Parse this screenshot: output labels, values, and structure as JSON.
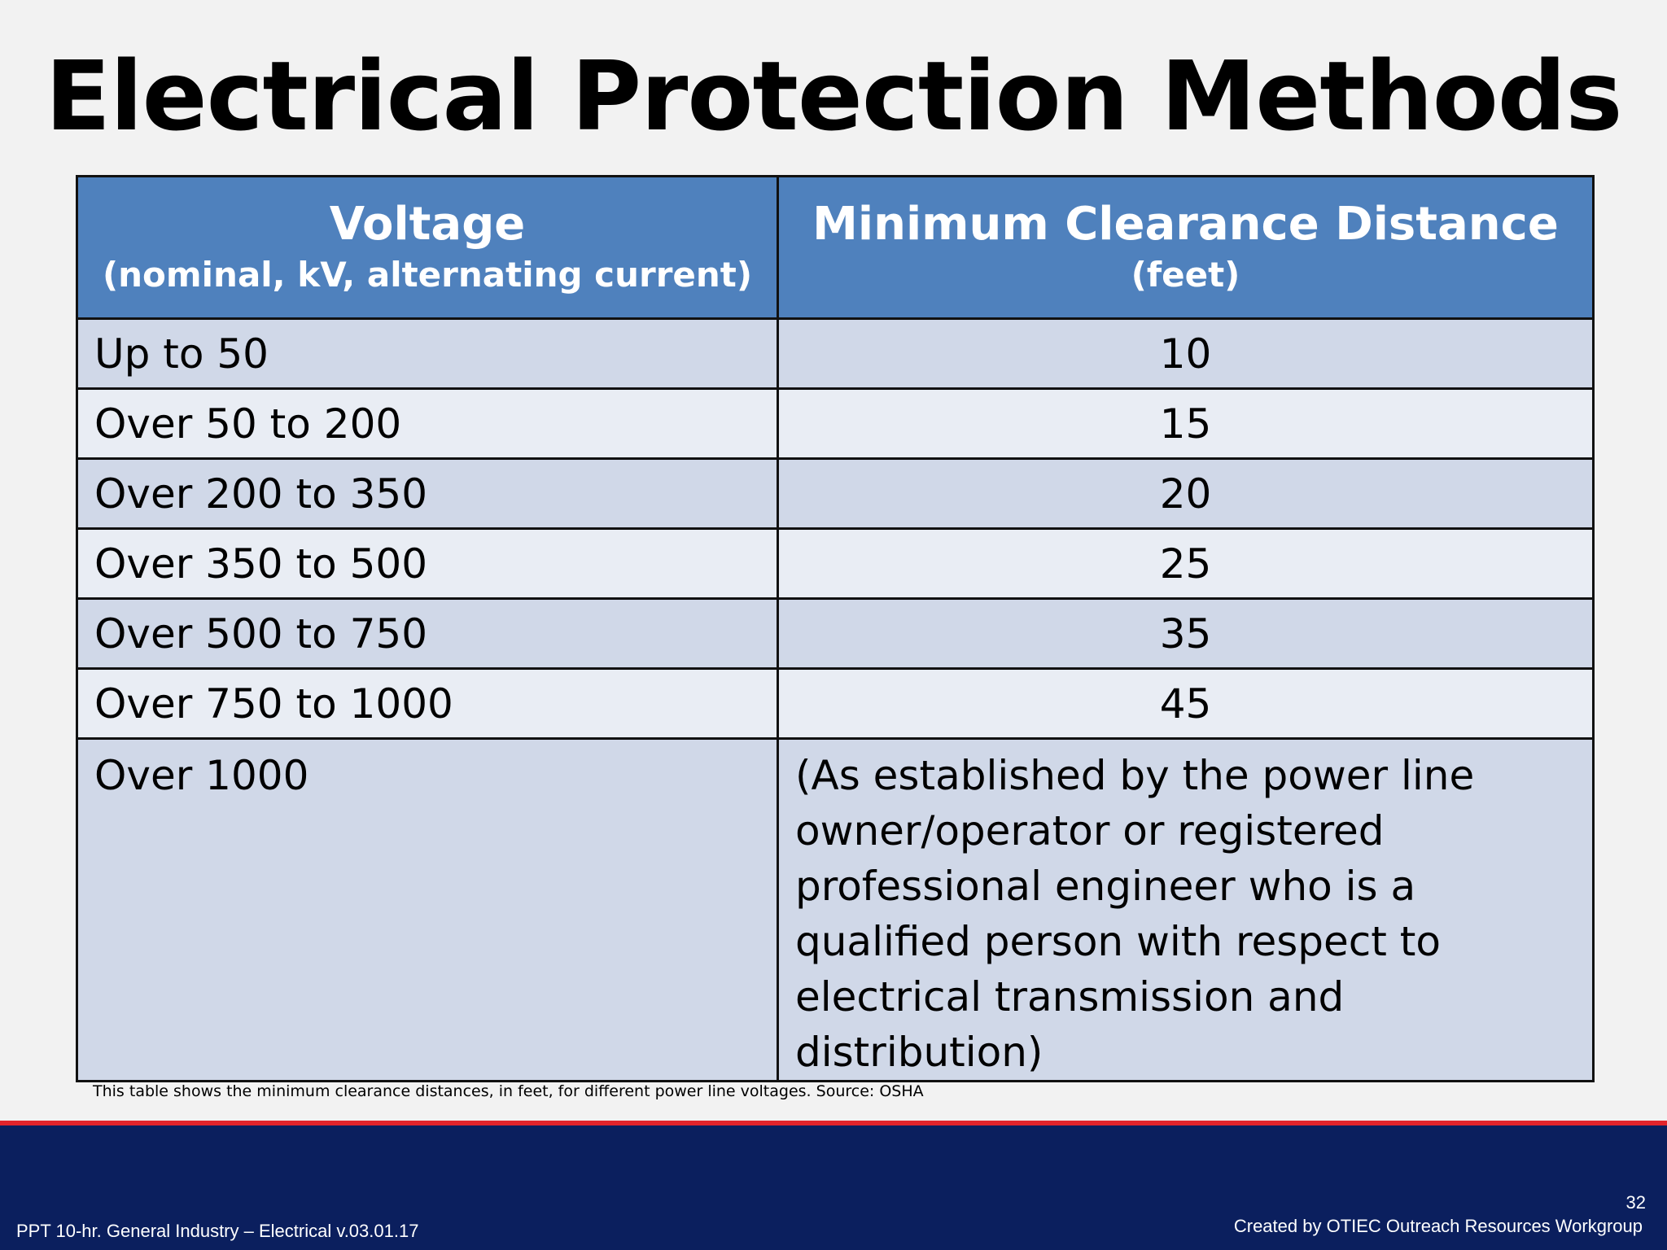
{
  "slide": {
    "title": "Electrical Protection Methods",
    "note": "This table shows the minimum clearance distances, in feet, for different power line voltages. Source: OSHA"
  },
  "table": {
    "headers": [
      {
        "main": "Voltage",
        "sub": "(nominal, kV, alternating current)"
      },
      {
        "main": "Minimum Clearance Distance",
        "sub": "(feet)"
      }
    ],
    "rows": [
      {
        "voltage": "Up to 50",
        "distance": "10"
      },
      {
        "voltage": "Over 50 to 200",
        "distance": "15"
      },
      {
        "voltage": "Over 200 to 350",
        "distance": "20"
      },
      {
        "voltage": "Over 350 to 500",
        "distance": "25"
      },
      {
        "voltage": "Over 500 to 750",
        "distance": "35"
      },
      {
        "voltage": "Over 750 to 1000",
        "distance": "45"
      },
      {
        "voltage": "Over 1000",
        "distance": "(As established by the power line owner/operator or registered professional engineer who is a qualified person with respect to electrical transmission and distribution)"
      }
    ]
  },
  "footer": {
    "left": "PPT 10-hr. General Industry – Electrical v.03.01.17",
    "page": "32",
    "right": "Created by OTIEC Outreach Resources Workgroup"
  },
  "colors": {
    "header_blue": "#4f81bd",
    "row_dark": "#d0d8e8",
    "row_light": "#e9edf4",
    "footer_navy": "#0b1f5e",
    "accent_red": "#e3242b"
  }
}
